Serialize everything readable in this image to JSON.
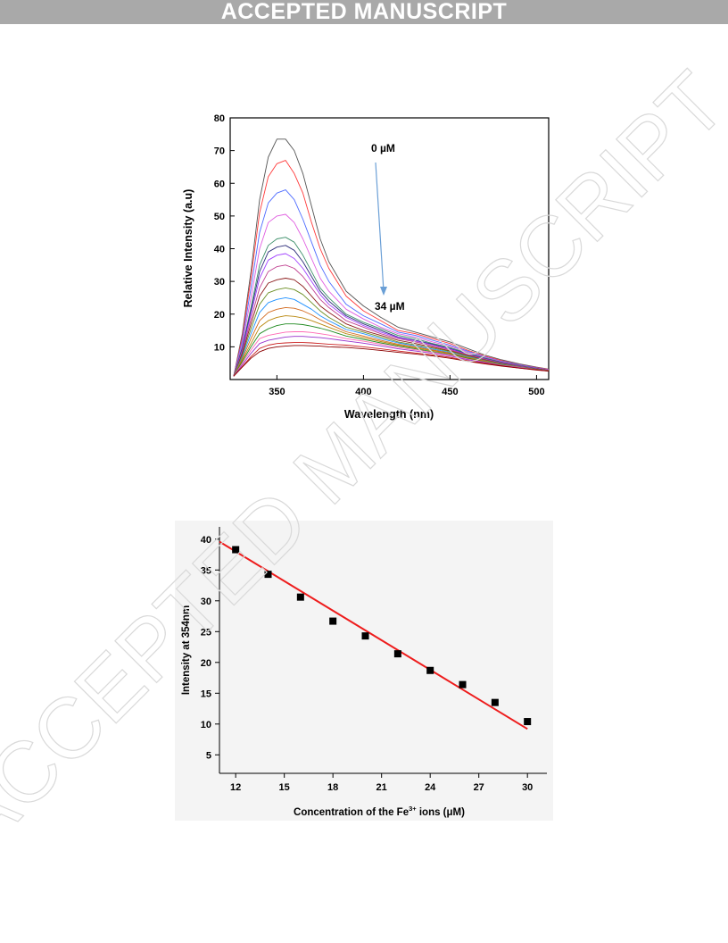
{
  "header": {
    "banner": "ACCEPTED MANUSCRIPT"
  },
  "watermark": {
    "text": "ACCEPTED MANUSCRIPT",
    "color": "#d9d9d9"
  },
  "chart_data": [
    {
      "type": "line",
      "xlabel": "Wavelength (nm)",
      "ylabel": "Relative Intensity (a.u)",
      "xlim": [
        323,
        507
      ],
      "ylim": [
        0,
        80
      ],
      "xticks": [
        350,
        400,
        450,
        500
      ],
      "yticks": [
        10,
        20,
        30,
        40,
        50,
        60,
        70,
        80
      ],
      "annotations": {
        "start": "0 µM",
        "end": "34 µM"
      },
      "arrow_color": "#6a9fd6",
      "x": [
        325,
        330,
        335,
        340,
        345,
        350,
        355,
        360,
        365,
        370,
        375,
        380,
        390,
        400,
        410,
        420,
        430,
        440,
        450,
        460,
        470,
        480,
        490,
        500,
        507
      ],
      "series": [
        {
          "color": "#555555",
          "values": [
            1,
            14,
            33,
            55,
            68,
            73.5,
            73.5,
            70,
            63,
            53,
            43,
            36,
            27,
            22.5,
            19,
            16,
            14.5,
            13,
            11.5,
            9.5,
            7.5,
            6,
            4.8,
            3.8,
            3.2
          ]
        },
        {
          "color": "#ff3a3a",
          "values": [
            1,
            13,
            31,
            51,
            62,
            66,
            67,
            63,
            57,
            48,
            40,
            34,
            25.5,
            21,
            18,
            15,
            14,
            12.5,
            11,
            9,
            7.2,
            5.8,
            4.6,
            3.7,
            3.1
          ]
        },
        {
          "color": "#4d6bff",
          "values": [
            1,
            12,
            28,
            45,
            54,
            57,
            58,
            55,
            49,
            42,
            35,
            30,
            23,
            19.5,
            17,
            14.5,
            13.5,
            12,
            10.5,
            8.7,
            7,
            5.6,
            4.5,
            3.6,
            3.0
          ]
        },
        {
          "color": "#e05de0",
          "values": [
            1,
            11,
            25,
            40,
            48,
            50,
            50.5,
            48,
            43,
            37,
            31,
            27,
            21.5,
            18.5,
            16,
            14,
            13,
            11.5,
            10.2,
            8.4,
            6.8,
            5.5,
            4.4,
            3.5,
            3.0
          ]
        },
        {
          "color": "#3d8f6a",
          "values": [
            1,
            10,
            22,
            35,
            41,
            43,
            43.5,
            42,
            38,
            33,
            28,
            25,
            20,
            17.5,
            15.5,
            13.5,
            12.5,
            11,
            9.8,
            8.1,
            6.6,
            5.3,
            4.3,
            3.5,
            2.9
          ]
        },
        {
          "color": "#2e2e7a",
          "values": [
            1,
            9.5,
            21,
            33,
            39,
            40.5,
            41,
            39.5,
            36,
            31.5,
            27,
            24,
            19.5,
            17,
            15,
            13,
            12,
            10.8,
            9.5,
            7.9,
            6.4,
            5.2,
            4.2,
            3.4,
            2.9
          ]
        },
        {
          "color": "#a040ff",
          "values": [
            1,
            9,
            20,
            31,
            36.5,
            38,
            38.5,
            37,
            34,
            30,
            26,
            23,
            19,
            16.5,
            14.5,
            12.8,
            11.8,
            10.5,
            9.3,
            7.7,
            6.3,
            5.1,
            4.1,
            3.4,
            2.9
          ]
        },
        {
          "color": "#c04090",
          "values": [
            1,
            8.5,
            18.5,
            28,
            33,
            34.5,
            35,
            34,
            31.5,
            28,
            24.5,
            22,
            18,
            16,
            14,
            12.5,
            11.5,
            10.3,
            9.1,
            7.6,
            6.2,
            5.0,
            4.1,
            3.3,
            2.8
          ]
        },
        {
          "color": "#8b1a1a",
          "values": [
            1,
            8,
            17,
            25.5,
            29.5,
            30.5,
            31,
            30.5,
            28.5,
            25.5,
            22.5,
            20.5,
            17,
            15,
            13.5,
            12,
            11,
            9.9,
            8.8,
            7.4,
            6.0,
            4.9,
            4.0,
            3.3,
            2.8
          ]
        },
        {
          "color": "#6b8e23",
          "values": [
            1,
            7.5,
            15.5,
            23,
            26.5,
            27.5,
            28,
            27.5,
            26,
            23.5,
            21,
            19,
            16,
            14.5,
            13,
            11.5,
            10.6,
            9.6,
            8.6,
            7.2,
            5.9,
            4.8,
            3.9,
            3.2,
            2.8
          ]
        },
        {
          "color": "#1e90ff",
          "values": [
            1,
            7,
            14,
            20.5,
            23.5,
            24.5,
            25,
            24.5,
            23,
            21.5,
            19.5,
            18,
            15.3,
            14,
            12.5,
            11.2,
            10.3,
            9.3,
            8.3,
            7.0,
            5.8,
            4.7,
            3.9,
            3.2,
            2.7
          ]
        },
        {
          "color": "#d2691e",
          "values": [
            1,
            6.5,
            12.5,
            18,
            20.5,
            21.5,
            22,
            21.8,
            21,
            19.8,
            18.3,
            17,
            14.6,
            13.3,
            12,
            10.8,
            10,
            9,
            8.1,
            6.8,
            5.7,
            4.6,
            3.8,
            3.1,
            2.7
          ]
        },
        {
          "color": "#b8860b",
          "values": [
            1,
            6,
            11,
            16,
            18,
            19,
            19.5,
            19.3,
            18.8,
            18,
            17,
            16,
            14,
            12.8,
            11.6,
            10.5,
            9.7,
            8.8,
            7.9,
            6.7,
            5.6,
            4.6,
            3.8,
            3.1,
            2.7
          ]
        },
        {
          "color": "#228b22",
          "values": [
            1,
            5.5,
            10,
            14,
            15.5,
            16.5,
            17,
            17,
            16.8,
            16.3,
            15.7,
            15,
            13.3,
            12.3,
            11.2,
            10.2,
            9.4,
            8.5,
            7.7,
            6.5,
            5.4,
            4.5,
            3.7,
            3.1,
            2.7
          ]
        },
        {
          "color": "#ff69b4",
          "values": [
            1,
            5,
            9,
            12.5,
            13.5,
            14,
            14.5,
            14.6,
            14.6,
            14.4,
            14,
            13.6,
            12.5,
            11.7,
            10.8,
            9.8,
            9.1,
            8.3,
            7.5,
            6.3,
            5.3,
            4.4,
            3.7,
            3.0,
            2.7
          ]
        },
        {
          "color": "#9932cc",
          "values": [
            1,
            4.5,
            8,
            11,
            12,
            12.5,
            13,
            13.2,
            13.2,
            13,
            12.8,
            12.5,
            11.8,
            11.1,
            10.3,
            9.4,
            8.7,
            8,
            7.2,
            6.1,
            5.2,
            4.3,
            3.6,
            3.0,
            2.6
          ]
        },
        {
          "color": "#cc2222",
          "values": [
            1,
            4,
            7,
            9.5,
            10.5,
            11,
            11.2,
            11.3,
            11.3,
            11.2,
            11,
            10.8,
            10.5,
            10,
            9.4,
            8.7,
            8.1,
            7.5,
            6.8,
            5.8,
            5.0,
            4.2,
            3.5,
            3.0,
            2.6
          ]
        },
        {
          "color": "#8b0000",
          "values": [
            1,
            3.8,
            6.5,
            8.5,
            9.5,
            10,
            10.2,
            10.4,
            10.4,
            10.3,
            10.2,
            10,
            9.8,
            9.4,
            8.9,
            8.3,
            7.8,
            7.2,
            6.5,
            5.6,
            4.8,
            4.1,
            3.5,
            2.9,
            2.6
          ]
        }
      ]
    },
    {
      "type": "scatter",
      "xlabel": "Concentration of the Fe",
      "xlabel_sup": "3+",
      "xlabel_tail": " ions (μM)",
      "ylabel": "Intensity at 354nm",
      "xlim": [
        11,
        31.2
      ],
      "ylim": [
        2,
        42
      ],
      "xticks": [
        12,
        15,
        18,
        21,
        24,
        27,
        30
      ],
      "yticks": [
        5,
        10,
        15,
        20,
        25,
        30,
        35,
        40
      ],
      "x": [
        12,
        14,
        16,
        18,
        20,
        22,
        24,
        26,
        28,
        30
      ],
      "y": [
        38.3,
        34.3,
        30.6,
        26.7,
        24.3,
        21.4,
        18.7,
        16.4,
        13.5,
        10.4
      ],
      "fit_line": {
        "color": "#ee1c1c",
        "x": [
          11,
          30
        ],
        "y": [
          39.6,
          9.2
        ]
      },
      "marker_color": "#000000"
    }
  ]
}
